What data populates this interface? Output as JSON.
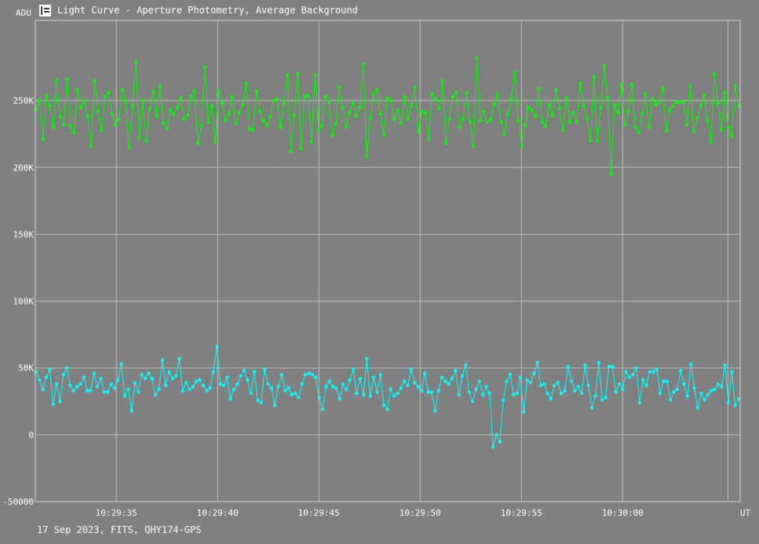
{
  "window": {
    "title": "Light Curve - Aperture Photometry, Average Background",
    "icon": "chart-icon"
  },
  "footer": {
    "text": "17 Sep 2023, FITS, QHY174-GPS"
  },
  "colors": {
    "background": "#808080",
    "grid": "#bdbdbd",
    "series1": "#00ff00",
    "series2": "#00ffff"
  },
  "chart_data": {
    "type": "line",
    "ylabel": "ADU",
    "xlabel": "UT",
    "ylim": [
      -50000,
      310000
    ],
    "yticks": [
      -50000,
      0,
      50000,
      100000,
      150000,
      200000,
      250000
    ],
    "ytick_labels": [
      "-50000",
      "0",
      "50K",
      "100K",
      "150K",
      "200K",
      "250K"
    ],
    "xrange_seconds": [
      31.0,
      65.8
    ],
    "xticks": [
      "10:29:35",
      "10:29:40",
      "10:29:45",
      "10:29:50",
      "10:29:55",
      "10:30:00"
    ],
    "xtick_seconds": [
      35,
      40,
      45,
      50,
      55,
      60
    ],
    "marker_second": 65.2,
    "grid": true,
    "series": [
      {
        "values": [
          243000,
          250000,
          221000,
          254000,
          246000,
          230000,
          265000,
          238000,
          232000,
          266000,
          231000,
          226000,
          258000,
          245000,
          250000,
          238000,
          216000,
          265000,
          242000,
          228000,
          253000,
          256000,
          240000,
          232000,
          236000,
          258000,
          250000,
          215000,
          246000,
          279000,
          222000,
          250000,
          220000,
          244000,
          257000,
          238000,
          261000,
          233000,
          229000,
          243000,
          240000,
          245000,
          252000,
          236000,
          239000,
          253000,
          257000,
          218000,
          231000,
          275000,
          234000,
          246000,
          219000,
          257000,
          248000,
          235000,
          240000,
          253000,
          233000,
          241000,
          247000,
          263000,
          229000,
          228000,
          257000,
          242000,
          235000,
          231000,
          238000,
          250000,
          251000,
          230000,
          248000,
          269000,
          212000,
          239000,
          270000,
          214000,
          253000,
          254000,
          219000,
          269000,
          228000,
          231000,
          253000,
          249000,
          224000,
          233000,
          260000,
          245000,
          230000,
          241000,
          248000,
          238000,
          245000,
          277000,
          208000,
          237000,
          255000,
          258000,
          240000,
          224000,
          252000,
          250000,
          236000,
          243000,
          233000,
          253000,
          236000,
          246000,
          260000,
          227000,
          242000,
          241000,
          221000,
          255000,
          251000,
          244000,
          265000,
          218000,
          236000,
          253000,
          256000,
          230000,
          236000,
          256000,
          234000,
          216000,
          282000,
          235000,
          242000,
          234000,
          236000,
          247000,
          255000,
          234000,
          225000,
          240000,
          251000,
          271000,
          235000,
          216000,
          232000,
          245000,
          243000,
          238000,
          259000,
          234000,
          231000,
          247000,
          239000,
          258000,
          244000,
          228000,
          252000,
          234000,
          241000,
          234000,
          263000,
          246000,
          237000,
          220000,
          268000,
          220000,
          245000,
          276000,
          252000,
          195000,
          247000,
          241000,
          262000,
          232000,
          242000,
          262000,
          230000,
          226000,
          240000,
          255000,
          230000,
          251000,
          247000,
          249000,
          259000,
          227000,
          243000,
          246000,
          249000,
          249000,
          249000,
          232000,
          261000,
          227000,
          237000,
          246000,
          254000,
          235000,
          219000,
          270000,
          248000,
          228000,
          256000,
          230000,
          223000,
          261000,
          246000
        ]
      },
      {
        "values": [
          47000,
          41000,
          34000,
          43000,
          49000,
          23000,
          38000,
          25000,
          45000,
          50000,
          37000,
          33000,
          36000,
          38000,
          43000,
          33000,
          33000,
          46000,
          36000,
          42000,
          32000,
          32000,
          38000,
          35000,
          41000,
          53000,
          29000,
          34000,
          18000,
          39000,
          32000,
          45000,
          42000,
          46000,
          42000,
          30000,
          34000,
          56000,
          37000,
          47000,
          42000,
          44000,
          57000,
          33000,
          39000,
          34000,
          36000,
          40000,
          41000,
          37000,
          33000,
          35000,
          47000,
          66000,
          38000,
          37000,
          43000,
          27000,
          34000,
          38000,
          44000,
          48000,
          41000,
          31000,
          47000,
          26000,
          24000,
          49000,
          38000,
          35000,
          22000,
          36000,
          45000,
          33000,
          35000,
          30000,
          31000,
          28000,
          38000,
          45000,
          46000,
          45000,
          43000,
          28000,
          19000,
          36000,
          40000,
          36000,
          35000,
          27000,
          38000,
          34000,
          41000,
          49000,
          31000,
          42000,
          30000,
          57000,
          29000,
          43000,
          32000,
          45000,
          22000,
          19000,
          34000,
          29000,
          31000,
          35000,
          40000,
          37000,
          49000,
          39000,
          36000,
          33000,
          46000,
          32000,
          32000,
          18000,
          33000,
          43000,
          40000,
          38000,
          42000,
          48000,
          30000,
          44000,
          52000,
          32000,
          25000,
          34000,
          40000,
          30000,
          36000,
          31000,
          -9000,
          0,
          -5000,
          26000,
          40000,
          45000,
          30000,
          31000,
          43000,
          17000,
          41000,
          39000,
          46000,
          54000,
          37000,
          38000,
          31000,
          27000,
          37000,
          39000,
          31000,
          33000,
          51000,
          40000,
          33000,
          36000,
          31000,
          52000,
          37000,
          20000,
          29000,
          54000,
          26000,
          28000,
          51000,
          51000,
          32000,
          38000,
          34000,
          47000,
          43000,
          45000,
          50000,
          24000,
          41000,
          37000,
          47000,
          47000,
          49000,
          31000,
          40000,
          40000,
          26000,
          32000,
          34000,
          48000,
          38000,
          29000,
          53000,
          35000,
          20000,
          31000,
          26000,
          30000,
          33000,
          34000,
          38000,
          36000,
          52000,
          24000,
          47000,
          22000,
          27000
        ]
      }
    ]
  }
}
